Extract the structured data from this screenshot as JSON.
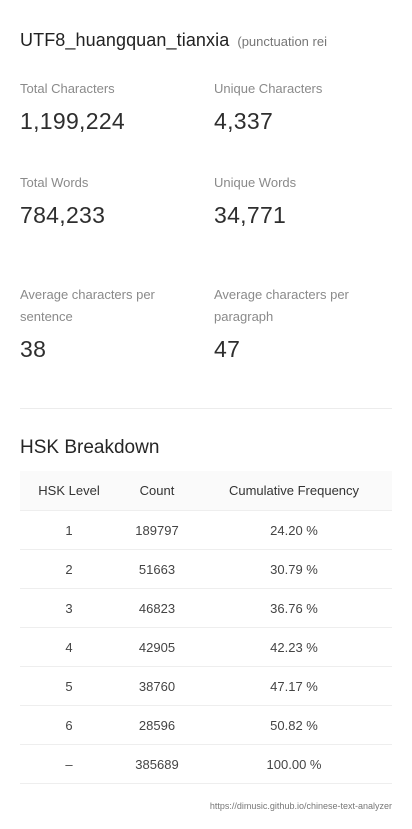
{
  "header": {
    "title": "UTF8_huangquan_tianxia",
    "subtitle": "(punctuation rei"
  },
  "stats": {
    "total_characters": {
      "label": "Total Characters",
      "value": "1,199,224"
    },
    "unique_characters": {
      "label": "Unique Characters",
      "value": "4,337"
    },
    "total_words": {
      "label": "Total Words",
      "value": "784,233"
    },
    "unique_words": {
      "label": "Unique Words",
      "value": "34,771"
    },
    "avg_chars_sentence": {
      "label_line1": "Average characters per",
      "label_line2": "sentence",
      "value": "38"
    },
    "avg_chars_paragraph": {
      "label_line1": "Average characters per",
      "label_line2": "paragraph",
      "value": "47"
    }
  },
  "hsk": {
    "title": "HSK Breakdown",
    "columns": [
      "HSK Level",
      "Count",
      "Cumulative Frequency"
    ],
    "rows": [
      [
        "1",
        "189797",
        "24.20 %"
      ],
      [
        "2",
        "51663",
        "30.79 %"
      ],
      [
        "3",
        "46823",
        "36.76 %"
      ],
      [
        "4",
        "42905",
        "42.23 %"
      ],
      [
        "5",
        "38760",
        "47.17 %"
      ],
      [
        "6",
        "28596",
        "50.82 %"
      ],
      [
        "–",
        "385689",
        "100.00 %"
      ]
    ]
  },
  "footer": {
    "url": "https://dimusic.github.io/chinese-text-analyzer"
  }
}
